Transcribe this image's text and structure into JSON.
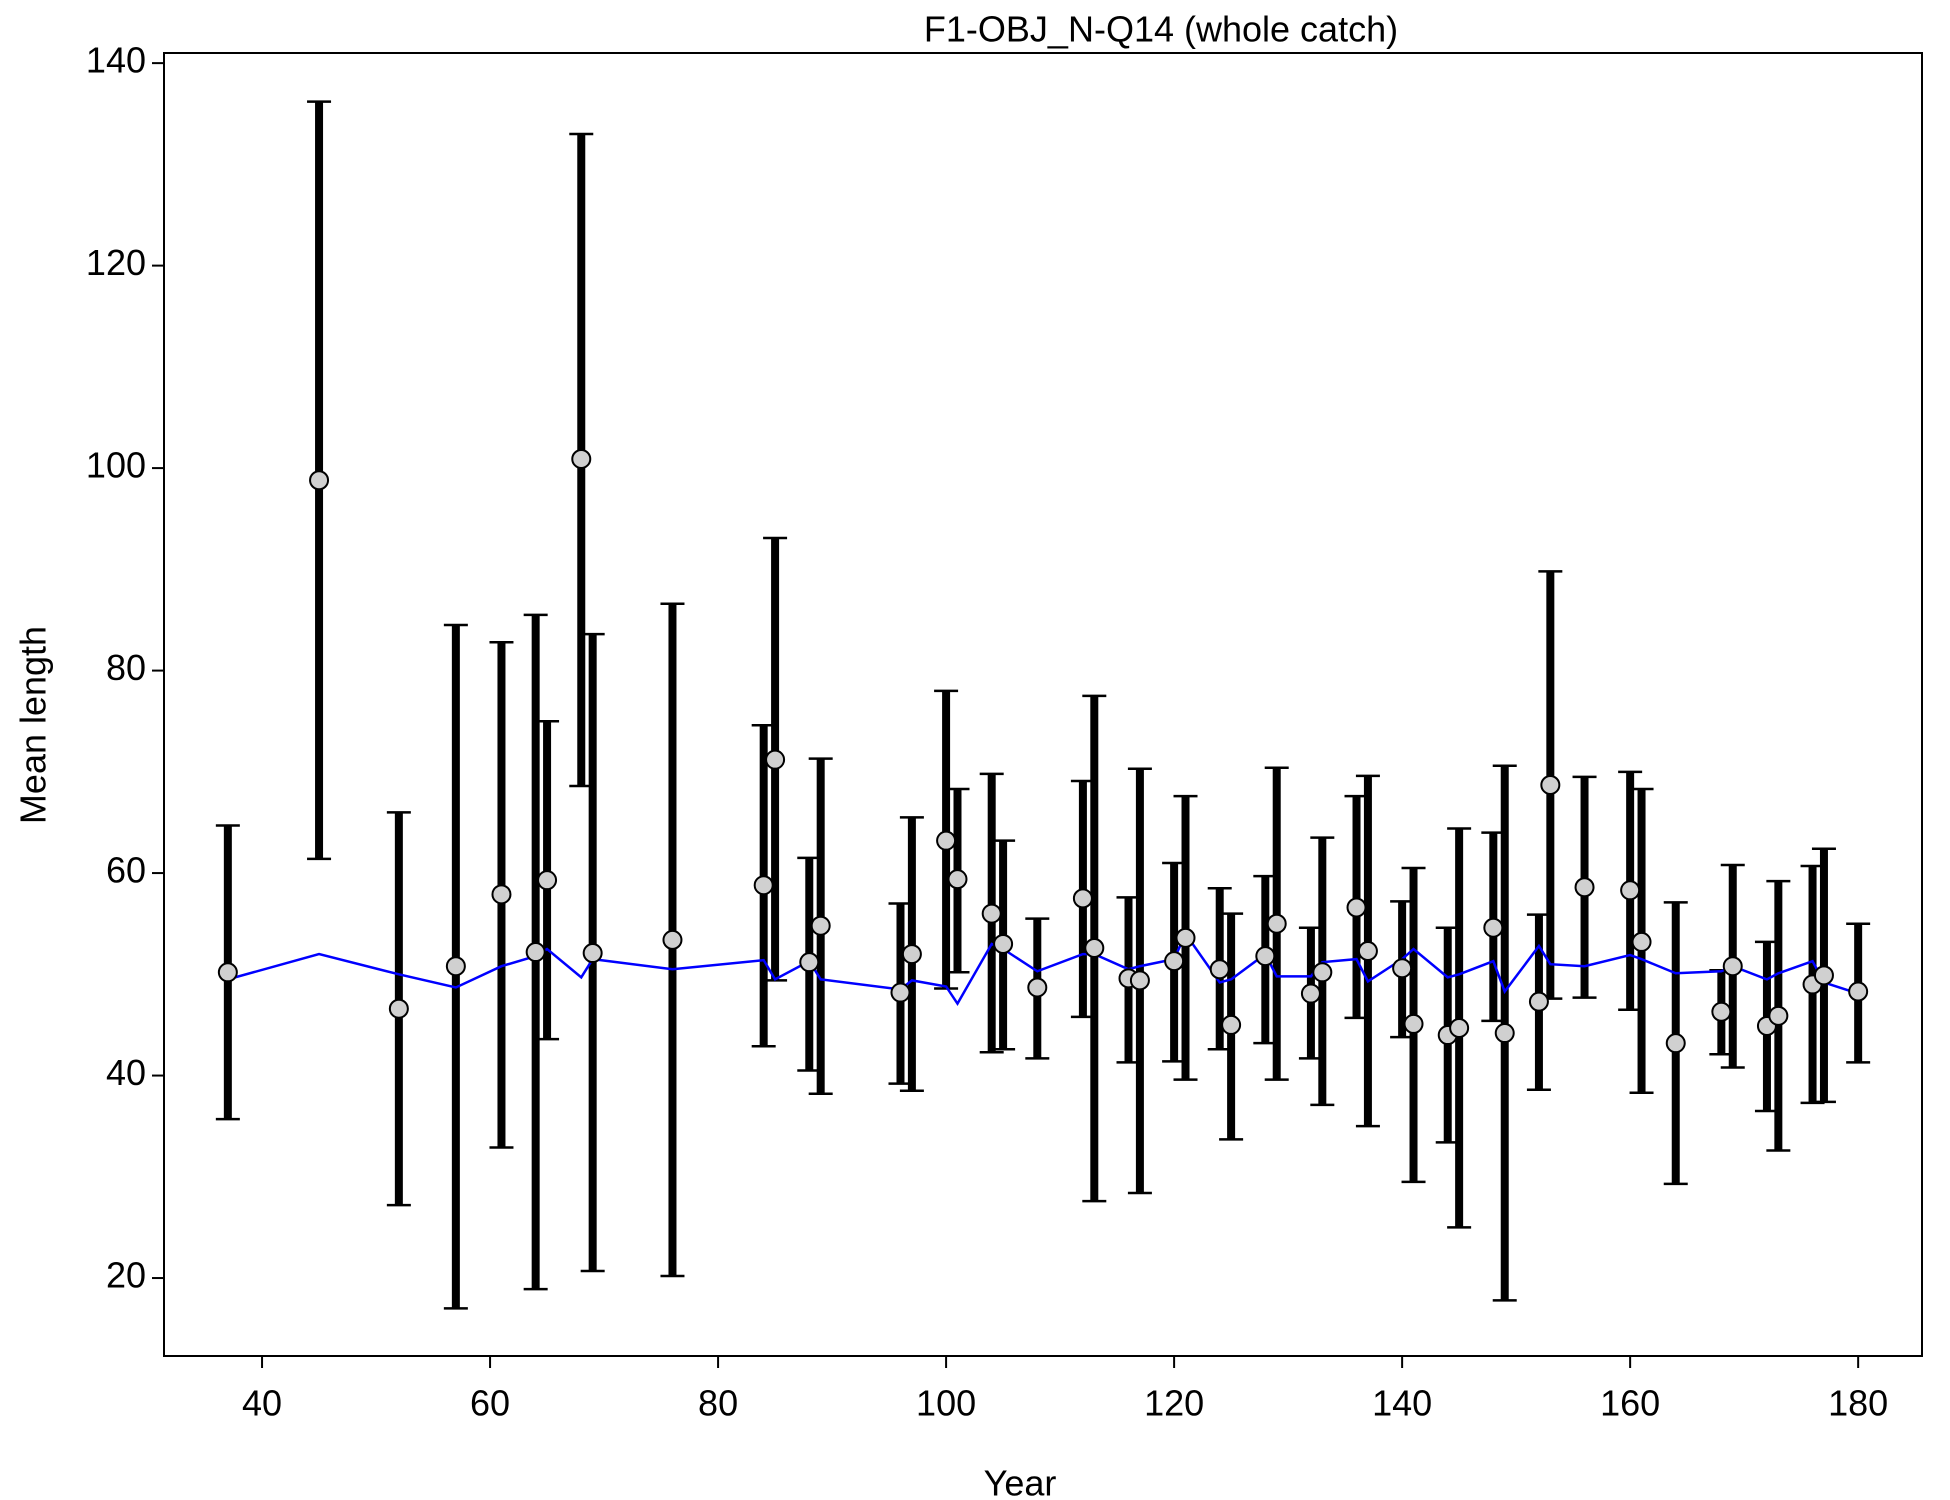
{
  "chart_data": {
    "type": "errorbar",
    "title": "F1-OBJ_N-Q14 (whole catch)",
    "xlabel": "Year",
    "ylabel": "Mean length",
    "x": [
      37,
      45,
      52,
      57,
      61,
      64,
      65,
      68,
      69,
      76,
      84,
      85,
      88,
      89,
      96,
      97,
      100,
      101,
      104,
      105,
      108,
      112,
      113,
      116,
      117,
      120,
      121,
      124,
      125,
      128,
      129,
      132,
      133,
      136,
      137,
      140,
      141,
      144,
      145,
      148,
      149,
      152,
      153,
      156,
      160,
      161,
      164,
      168,
      169,
      172,
      173,
      176,
      177,
      180
    ],
    "series": [
      {
        "color": "#000000",
        "values": [
          50.2,
          98.8,
          46.6,
          50.8,
          57.9,
          52.2,
          59.3,
          100.9,
          52.1,
          53.4,
          58.8,
          71.2,
          51.2,
          54.8,
          48.2,
          52,
          63.2,
          59.4,
          56,
          53,
          48.7,
          57.5,
          52.6,
          49.6,
          49.4,
          51.3,
          53.6,
          50.5,
          45,
          51.8,
          55,
          48.1,
          50.2,
          56.6,
          52.3,
          50.6,
          45.1,
          44,
          44.7,
          54.6,
          44.2,
          47.3,
          68.7,
          58.6,
          58.3,
          53.2,
          43.2,
          46.3,
          50.8,
          44.9,
          45.9,
          49,
          49.9,
          48.3
        ],
        "lower": [
          35.7,
          61.4,
          27.2,
          17,
          32.9,
          18.9,
          43.6,
          68.6,
          20.7,
          20.2,
          42.9,
          49.4,
          40.5,
          38.2,
          39.2,
          38.5,
          48.6,
          50.2,
          42.3,
          42.6,
          41.7,
          45.8,
          27.6,
          41.3,
          28.4,
          41.4,
          39.6,
          42.6,
          33.7,
          43.2,
          39.6,
          41.7,
          37.1,
          45.7,
          35,
          43.8,
          29.5,
          33.4,
          25,
          45.4,
          17.8,
          38.6,
          47.6,
          47.7,
          46.5,
          38.3,
          29.3,
          42.1,
          40.8,
          36.5,
          32.6,
          37.3,
          37.4,
          41.3
        ],
        "upper": [
          64.7,
          136.2,
          66,
          84.5,
          82.8,
          85.5,
          75,
          133,
          83.6,
          86.6,
          74.6,
          93.1,
          61.5,
          71.3,
          57,
          65.5,
          78,
          68.3,
          69.8,
          63.2,
          55.5,
          69.1,
          77.5,
          57.6,
          70.3,
          61,
          67.6,
          58.5,
          56,
          59.7,
          70.4,
          54.6,
          63.5,
          67.6,
          69.6,
          57.2,
          60.5,
          54.6,
          64.4,
          64,
          70.6,
          55.9,
          89.8,
          69.5,
          70,
          68.3,
          57.1,
          50.4,
          60.8,
          53.2,
          59.2,
          60.7,
          62.4,
          55
        ]
      },
      {
        "color": "#0000ff",
        "values": [
          49.5,
          52,
          50,
          48.7,
          50.8,
          51.8,
          52.5,
          49.7,
          51.5,
          50.5,
          51.4,
          49.5,
          51.3,
          49.5,
          48.5,
          49.4,
          48.8,
          47.1,
          53,
          52.5,
          50.3,
          52,
          52,
          50.5,
          50.8,
          51.5,
          54,
          49.2,
          49.5,
          52,
          49.8,
          49.8,
          51.2,
          51.5,
          49.3,
          51.5,
          52.5,
          49.7,
          50,
          51.3,
          48.3,
          52.8,
          51,
          50.8,
          51.9,
          51.5,
          50.1,
          50.3,
          50.8,
          49.5,
          50.1,
          51.3,
          49.2,
          48.1
        ]
      }
    ],
    "xlim": [
      31.4,
      185.6
    ],
    "ylim": [
      12.3,
      141
    ],
    "xticks": [
      40,
      60,
      80,
      100,
      120,
      140,
      160,
      180
    ],
    "yticks": [
      20,
      40,
      60,
      80,
      100,
      120,
      140
    ]
  }
}
